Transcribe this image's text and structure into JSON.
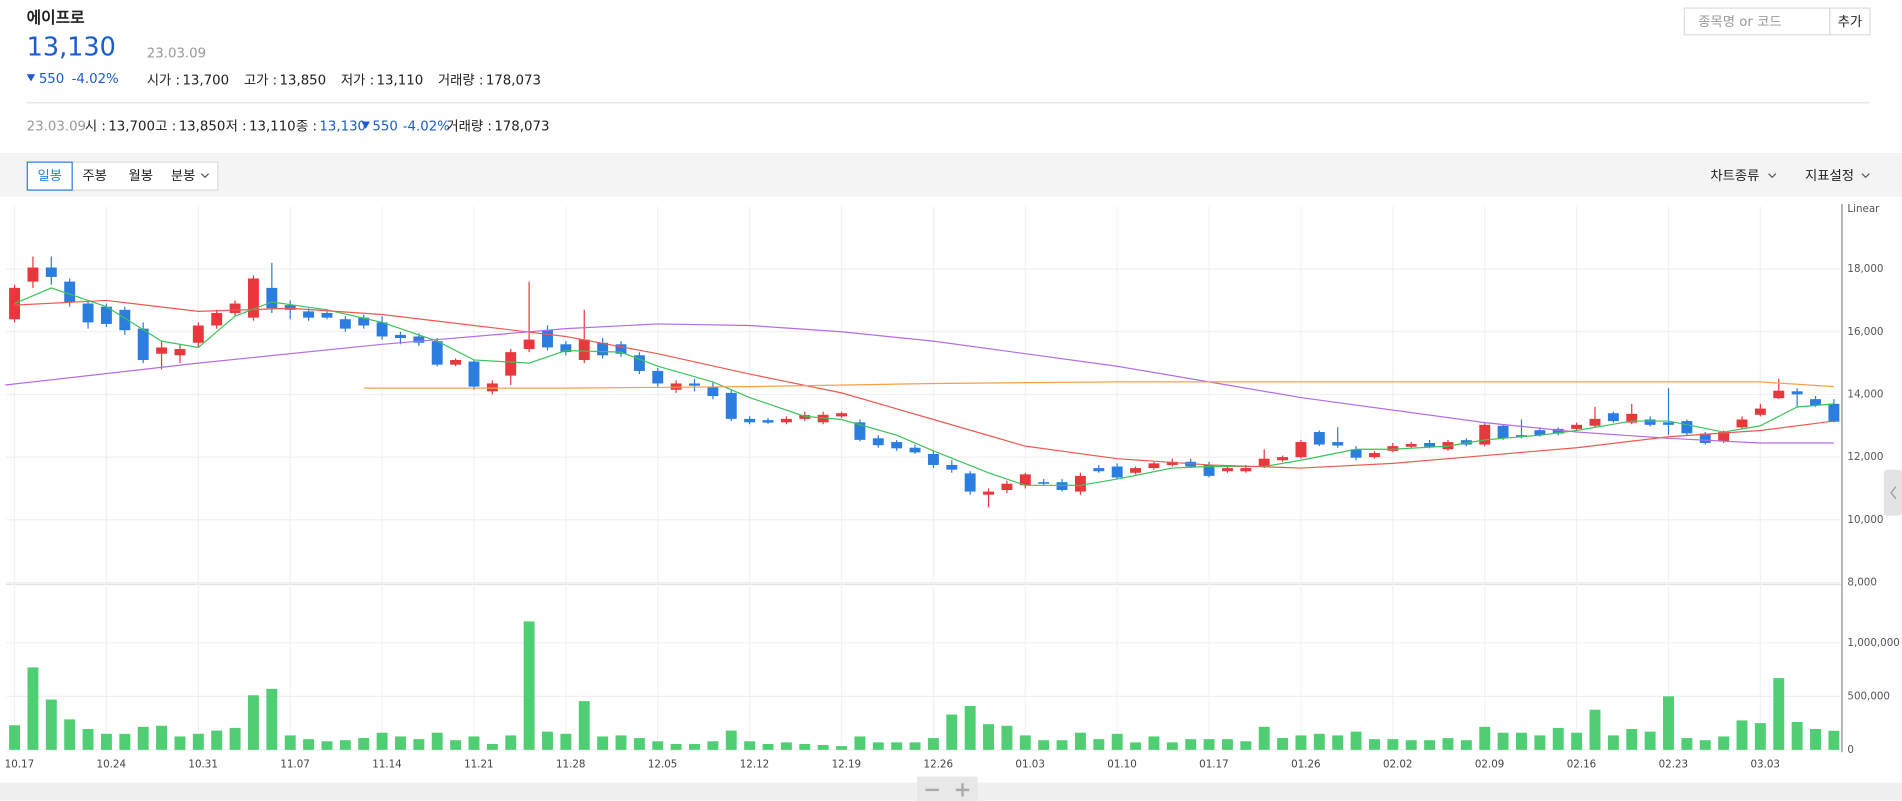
{
  "header": {
    "name": "에이프로",
    "price": "13,130",
    "date": "23.03.09",
    "change": "550",
    "change_rate": "-4.02%",
    "stats": [
      {
        "label": "시가 :",
        "value": "13,700"
      },
      {
        "label": "고가 :",
        "value": "13,850"
      },
      {
        "label": "저가 :",
        "value": "13,110"
      },
      {
        "label": "거래량 :",
        "value": "178,073"
      }
    ]
  },
  "summary": {
    "date": "23.03.09",
    "items": [
      {
        "label": "시 :",
        "value": "13,700"
      },
      {
        "label": "고 :",
        "value": "13,850"
      },
      {
        "label": "저 :",
        "value": "13,110"
      }
    ],
    "close": {
      "label": "종 :",
      "value": "13,130"
    },
    "change": "550",
    "change_rate": "-4.02%",
    "volume": {
      "label": "거래량 :",
      "value": "178,073"
    }
  },
  "search": {
    "placeholder": "종목명 or 코드",
    "button": "추가"
  },
  "tabs": [
    "일봉",
    "주봉",
    "월봉",
    "분봉"
  ],
  "menus": [
    "차트종류",
    "지표설정"
  ],
  "chart_data": [
    {
      "type": "candlestick",
      "scale_label": "Linear",
      "up_color": "#e8383d",
      "down_color": "#2b7de0",
      "ylim": [
        8000,
        20000
      ],
      "yticks": [
        {
          "value": 8000,
          "label": "8,000"
        },
        {
          "value": 10000,
          "label": "10,000"
        },
        {
          "value": 12000,
          "label": "12,000"
        },
        {
          "value": 14000,
          "label": "14,000"
        },
        {
          "value": 16000,
          "label": "16,000"
        },
        {
          "value": 18000,
          "label": "18,000"
        }
      ],
      "grid": true,
      "open": [
        16400,
        17600,
        18050,
        17600,
        16900,
        16800,
        16700,
        16100,
        15300,
        15250,
        15650,
        16200,
        16600,
        16450,
        17400,
        16850,
        16650,
        16600,
        16400,
        16450,
        16300,
        15900,
        15850,
        15700,
        14950,
        15050,
        14100,
        14600,
        15450,
        16050,
        15600,
        15100,
        15650,
        15600,
        15250,
        14750,
        14150,
        14350,
        14250,
        14050,
        13220,
        13180,
        13110,
        13220,
        13110,
        13300,
        13110,
        12600,
        12480,
        12300,
        12100,
        11750,
        11480,
        10800,
        10950,
        11100,
        11200,
        11200,
        10900,
        11650,
        11700,
        11500,
        11650,
        11750,
        11850,
        11750,
        11550,
        11550,
        11700,
        11900,
        12000,
        12800,
        12480,
        12250,
        12000,
        12200,
        12330,
        12450,
        12250,
        12540,
        12400,
        13000,
        12700,
        12860,
        12900,
        12900,
        13000,
        13400,
        13100,
        13200,
        13110,
        13150,
        12750,
        12500,
        12950,
        13350,
        13880,
        14100,
        13850,
        13700
      ],
      "high": [
        17500,
        18400,
        18400,
        17700,
        17000,
        16900,
        16800,
        16300,
        15700,
        15600,
        16300,
        16700,
        17000,
        17800,
        18200,
        17000,
        16750,
        16700,
        16500,
        16550,
        16500,
        16000,
        15950,
        15800,
        15150,
        15100,
        14450,
        15450,
        17600,
        16200,
        15700,
        16700,
        15800,
        15700,
        15350,
        14850,
        14450,
        14500,
        14400,
        14150,
        13300,
        13250,
        13300,
        13450,
        13450,
        13450,
        13200,
        12700,
        12550,
        12400,
        12200,
        11900,
        11550,
        11000,
        11250,
        11500,
        11300,
        11300,
        11500,
        11750,
        11800,
        11700,
        11850,
        11950,
        11950,
        11850,
        11700,
        11750,
        12250,
        12050,
        12550,
        12850,
        12950,
        12350,
        12200,
        12450,
        12480,
        12550,
        12550,
        12600,
        13100,
        13050,
        13200,
        12950,
        12950,
        13100,
        13600,
        13450,
        13700,
        13300,
        14200,
        13200,
        12800,
        12850,
        13300,
        13700,
        14500,
        14200,
        13950,
        13850
      ],
      "low": [
        16300,
        17400,
        17500,
        16800,
        16100,
        16150,
        15900,
        15000,
        14800,
        15000,
        15500,
        16100,
        16500,
        16350,
        16600,
        16400,
        16350,
        16400,
        16000,
        16100,
        15750,
        15600,
        15550,
        14900,
        14900,
        14150,
        14000,
        14300,
        15350,
        15400,
        15250,
        15000,
        15150,
        15200,
        14650,
        14250,
        14050,
        14100,
        13850,
        13150,
        13050,
        13050,
        13050,
        13150,
        13050,
        13250,
        12500,
        12300,
        12200,
        12100,
        11650,
        11500,
        10800,
        10400,
        10850,
        11000,
        11100,
        10900,
        10800,
        11500,
        11300,
        11450,
        11600,
        11700,
        11650,
        11350,
        11500,
        11500,
        11650,
        11850,
        11950,
        12350,
        12300,
        11900,
        11950,
        12150,
        12280,
        12280,
        12200,
        12350,
        12350,
        12550,
        12600,
        12650,
        12700,
        12850,
        12950,
        13100,
        13050,
        12980,
        12700,
        12700,
        12400,
        12450,
        12900,
        13300,
        13850,
        13600,
        13600,
        13110
      ],
      "close": [
        17400,
        18050,
        17750,
        16950,
        16300,
        16250,
        16050,
        15100,
        15500,
        15450,
        16200,
        16600,
        16900,
        17700,
        16750,
        16700,
        16450,
        16450,
        16100,
        16200,
        15850,
        15800,
        15650,
        14950,
        15100,
        14250,
        14350,
        15350,
        15750,
        15500,
        15350,
        15750,
        15250,
        15300,
        14750,
        14350,
        14350,
        14280,
        13950,
        13220,
        13110,
        13100,
        13220,
        13340,
        13350,
        13400,
        12550,
        12380,
        12280,
        12150,
        11750,
        11600,
        10900,
        10900,
        11150,
        11450,
        11150,
        10950,
        11400,
        11550,
        11350,
        11650,
        11800,
        11850,
        11700,
        11400,
        11650,
        11650,
        11950,
        12000,
        12480,
        12400,
        12370,
        11980,
        12130,
        12350,
        12420,
        12330,
        12480,
        12400,
        13030,
        12600,
        12650,
        12700,
        12750,
        13030,
        13220,
        13150,
        13380,
        13030,
        13030,
        12760,
        12450,
        12800,
        13200,
        13550,
        14120,
        14000,
        13650,
        13130
      ],
      "lines": [
        {
          "color": "#3cc35c",
          "x": [
            0,
            2,
            5,
            8,
            10,
            12,
            14,
            17,
            20,
            23,
            25,
            28,
            30,
            33,
            35,
            38,
            40,
            43,
            45,
            48,
            50,
            53,
            55,
            58,
            60,
            63,
            65,
            68,
            70,
            73,
            75,
            78,
            80,
            83,
            85,
            88,
            90,
            93,
            95,
            97,
            99
          ],
          "values": [
            16900,
            17400,
            16800,
            15700,
            15500,
            16500,
            16950,
            16700,
            16300,
            15700,
            15100,
            15000,
            15400,
            15350,
            14900,
            14400,
            13900,
            13300,
            13200,
            12700,
            12200,
            11500,
            11100,
            11100,
            11300,
            11650,
            11700,
            11700,
            11900,
            12250,
            12250,
            12350,
            12550,
            12700,
            12850,
            13150,
            13150,
            12800,
            13000,
            13600,
            13700
          ]
        },
        {
          "color": "#ee5a4f",
          "x": [
            0,
            5,
            10,
            15,
            20,
            25,
            30,
            35,
            40,
            45,
            50,
            55,
            60,
            65,
            70,
            75,
            80,
            85,
            90,
            95,
            99
          ],
          "values": [
            16850,
            17000,
            16650,
            16750,
            16550,
            16200,
            15850,
            15300,
            14650,
            14050,
            13200,
            12350,
            11950,
            11750,
            11650,
            11800,
            12050,
            12300,
            12650,
            12850,
            13150
          ]
        },
        {
          "color": "#b36ee6",
          "x": [
            -0.5,
            10,
            20,
            30,
            35,
            40,
            45,
            50,
            55,
            60,
            65,
            70,
            75,
            80,
            85,
            90,
            95,
            99
          ],
          "values": [
            14300,
            15000,
            15600,
            16100,
            16250,
            16200,
            16000,
            15700,
            15300,
            14900,
            14400,
            13900,
            13500,
            13100,
            12800,
            12600,
            12450,
            12450
          ]
        },
        {
          "color": "#f5a14a",
          "x": [
            19,
            30,
            40,
            50,
            60,
            70,
            80,
            90,
            95,
            99
          ],
          "values": [
            14200,
            14200,
            14250,
            14350,
            14400,
            14400,
            14400,
            14400,
            14400,
            14250
          ]
        }
      ]
    },
    {
      "type": "bar",
      "color": "#4fce74",
      "ylim": [
        0,
        1530000
      ],
      "yticks": [
        0,
        {
          "value": 500000,
          "label": "500,000"
        },
        {
          "value": 1000000,
          "label": "1,000,000"
        }
      ],
      "grid": true,
      "categories": [
        "10.17",
        null,
        null,
        null,
        null,
        "10.24",
        null,
        null,
        null,
        null,
        "10.31",
        null,
        null,
        null,
        null,
        "11.07",
        null,
        null,
        null,
        null,
        "11.14",
        null,
        null,
        null,
        null,
        "11.21",
        null,
        null,
        null,
        null,
        "11.28",
        null,
        null,
        null,
        null,
        "12.05",
        null,
        null,
        null,
        null,
        "12.12",
        null,
        null,
        null,
        null,
        "12.19",
        null,
        null,
        null,
        null,
        "12.26",
        null,
        null,
        null,
        null,
        "01.03",
        null,
        null,
        null,
        null,
        "01.10",
        null,
        null,
        null,
        null,
        "01.17",
        null,
        null,
        null,
        null,
        "01.26",
        null,
        null,
        null,
        null,
        "02.02",
        null,
        null,
        null,
        null,
        "02.09",
        null,
        null,
        null,
        null,
        "02.16",
        null,
        null,
        null,
        null,
        "02.23",
        null,
        null,
        null,
        null,
        "03.03",
        null,
        null,
        null,
        null
      ],
      "values": [
        230000,
        770000,
        470000,
        285000,
        195000,
        150000,
        150000,
        215000,
        225000,
        125000,
        150000,
        180000,
        205000,
        510000,
        570000,
        135000,
        100000,
        80000,
        90000,
        110000,
        160000,
        125000,
        100000,
        160000,
        90000,
        125000,
        55000,
        135000,
        1200000,
        170000,
        150000,
        455000,
        125000,
        135000,
        110000,
        80000,
        55000,
        55000,
        80000,
        180000,
        80000,
        55000,
        70000,
        55000,
        45000,
        35000,
        125000,
        70000,
        70000,
        70000,
        110000,
        330000,
        410000,
        240000,
        225000,
        135000,
        90000,
        90000,
        160000,
        100000,
        150000,
        70000,
        125000,
        70000,
        100000,
        100000,
        100000,
        80000,
        215000,
        110000,
        135000,
        150000,
        135000,
        170000,
        100000,
        100000,
        90000,
        90000,
        110000,
        90000,
        215000,
        160000,
        160000,
        135000,
        205000,
        160000,
        375000,
        135000,
        195000,
        170000,
        500000,
        110000,
        90000,
        125000,
        275000,
        250000,
        670000,
        260000,
        195000,
        178073
      ]
    }
  ]
}
